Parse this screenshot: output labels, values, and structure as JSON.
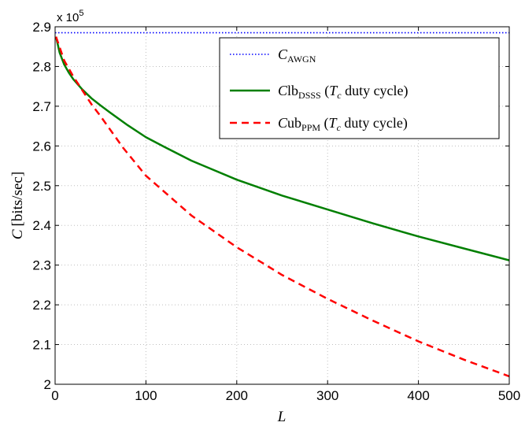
{
  "chart_data": {
    "type": "line",
    "title": "",
    "xlabel": "L",
    "ylabel": {
      "symbol": "C",
      "unit": "[bits/sec]"
    },
    "y_exponent": {
      "base": "x 10",
      "power": "5"
    },
    "xlim": [
      0,
      500
    ],
    "ylim": [
      2.0,
      2.9
    ],
    "x_ticks": [
      0,
      100,
      200,
      300,
      400,
      500
    ],
    "x_tick_labels": [
      "0",
      "100",
      "200",
      "300",
      "400",
      "500"
    ],
    "y_ticks": [
      2.0,
      2.1,
      2.2,
      2.3,
      2.4,
      2.5,
      2.6,
      2.7,
      2.8,
      2.9
    ],
    "y_tick_labels": [
      "2",
      "2.1",
      "2.2",
      "2.3",
      "2.4",
      "2.5",
      "2.6",
      "2.7",
      "2.8",
      "2.9"
    ],
    "grid": true,
    "legend_position": "top-right",
    "series": [
      {
        "key": "awgn",
        "legend": {
          "main": "C",
          "sub": "AWGN",
          "suffix": ""
        },
        "color": "#0000ff",
        "style": "dotted",
        "x": [
          0,
          100,
          200,
          300,
          400,
          500
        ],
        "y": [
          2.885,
          2.885,
          2.885,
          2.885,
          2.885,
          2.885
        ]
      },
      {
        "key": "dsss",
        "legend": {
          "main": "C",
          "mid": "lb",
          "sub": "DSSS",
          "paren_open": " (",
          "tc": "T",
          "tc_sub": "c",
          "paren_rest": " duty cycle)"
        },
        "color": "#007f00",
        "style": "solid",
        "x": [
          1,
          5,
          10,
          15,
          20,
          30,
          40,
          50,
          60,
          80,
          100,
          120,
          150,
          200,
          250,
          300,
          350,
          400,
          450,
          500
        ],
        "y": [
          2.875,
          2.835,
          2.805,
          2.785,
          2.768,
          2.742,
          2.72,
          2.702,
          2.685,
          2.652,
          2.622,
          2.598,
          2.563,
          2.515,
          2.475,
          2.44,
          2.405,
          2.372,
          2.342,
          2.312
        ]
      },
      {
        "key": "ppm",
        "legend": {
          "main": "C",
          "mid": "ub",
          "sub": "PPM",
          "paren_open": " (",
          "tc": "T",
          "tc_sub": "c",
          "paren_rest": " duty cycle)"
        },
        "color": "#ff0000",
        "style": "dashed",
        "x": [
          1,
          10,
          20,
          30,
          40,
          50,
          75,
          100,
          150,
          200,
          250,
          300,
          350,
          400,
          450,
          500
        ],
        "y": [
          2.875,
          2.815,
          2.775,
          2.74,
          2.705,
          2.675,
          2.595,
          2.525,
          2.425,
          2.345,
          2.275,
          2.215,
          2.16,
          2.108,
          2.062,
          2.02
        ]
      }
    ]
  },
  "colors": {
    "axes": "#000000",
    "grid": "#bfbfbf",
    "background": "#ffffff"
  }
}
